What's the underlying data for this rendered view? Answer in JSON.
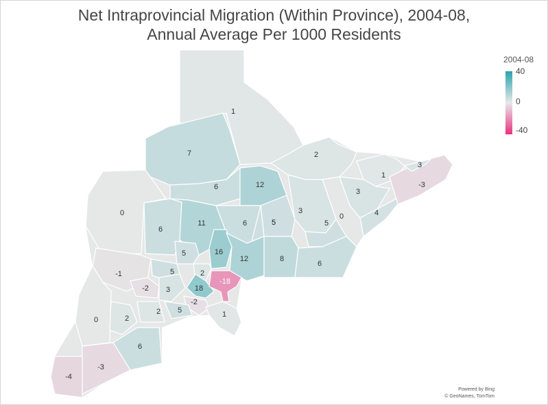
{
  "title_line1": "Net Intraprovincial Migration (Within Province), 2004-08,",
  "title_line2": "Annual Average Per 1000 Residents",
  "legend": {
    "title": "2004-08",
    "max": "40",
    "mid": "0",
    "min": "-40",
    "max_color": "#2aa3ad",
    "mid_color": "#e6e8e8",
    "min_color": "#e9327f"
  },
  "attribution": {
    "line1": "Powered by Bing",
    "line2": "© GeoNames, TomTom"
  },
  "regions": [
    {
      "id": "north",
      "value": 1,
      "label": "1"
    },
    {
      "id": "northwest-a",
      "value": 7,
      "label": "7"
    },
    {
      "id": "west-huron",
      "value": 0,
      "label": "0"
    },
    {
      "id": "east-upper",
      "value": 2,
      "label": "2"
    },
    {
      "id": "central-a",
      "value": 6,
      "label": "6"
    },
    {
      "id": "central-b",
      "value": 12,
      "label": "12"
    },
    {
      "id": "east-c",
      "value": 1,
      "label": "1"
    },
    {
      "id": "east-d",
      "value": 3,
      "label": "3"
    },
    {
      "id": "east-tip",
      "value": -3,
      "label": "-3"
    },
    {
      "id": "east-e",
      "value": 3,
      "label": "3"
    },
    {
      "id": "east-f",
      "value": 4,
      "label": "4"
    },
    {
      "id": "east-g",
      "value": 0,
      "label": "0"
    },
    {
      "id": "central-c",
      "value": 3,
      "label": "3"
    },
    {
      "id": "central-d",
      "value": 5,
      "label": "5"
    },
    {
      "id": "west-b",
      "value": 6,
      "label": "6"
    },
    {
      "id": "simcoe",
      "value": 11,
      "label": "11"
    },
    {
      "id": "kawartha",
      "value": 6,
      "label": "6"
    },
    {
      "id": "peterborough",
      "value": 5,
      "label": "5"
    },
    {
      "id": "east-h",
      "value": 5,
      "label": "5"
    },
    {
      "id": "west-c",
      "value": 5,
      "label": "5"
    },
    {
      "id": "york",
      "value": 16,
      "label": "16"
    },
    {
      "id": "durham",
      "value": 12,
      "label": "12"
    },
    {
      "id": "northumberland",
      "value": 8,
      "label": "8"
    },
    {
      "id": "east-i",
      "value": 6,
      "label": "6"
    },
    {
      "id": "west-d",
      "value": -1,
      "label": "-1"
    },
    {
      "id": "west-e",
      "value": -2,
      "label": "-2"
    },
    {
      "id": "west-f",
      "value": 5,
      "label": "5"
    },
    {
      "id": "west-g",
      "value": 3,
      "label": "3"
    },
    {
      "id": "peel",
      "value": 2,
      "label": "2"
    },
    {
      "id": "halton",
      "value": 18,
      "label": "18"
    },
    {
      "id": "toronto",
      "value": -18,
      "label": "-18"
    },
    {
      "id": "hamilton",
      "value": -2,
      "label": "-2"
    },
    {
      "id": "niagara",
      "value": 1,
      "label": "1"
    },
    {
      "id": "southwest-a",
      "value": 0,
      "label": "0"
    },
    {
      "id": "southwest-b",
      "value": 2,
      "label": "2"
    },
    {
      "id": "southwest-c",
      "value": 2,
      "label": "2"
    },
    {
      "id": "southwest-d",
      "value": 5,
      "label": "5"
    },
    {
      "id": "southwest-e",
      "value": 6,
      "label": "6"
    },
    {
      "id": "essex",
      "value": -4,
      "label": "-4"
    },
    {
      "id": "chatham",
      "value": -3,
      "label": "-3"
    }
  ]
}
